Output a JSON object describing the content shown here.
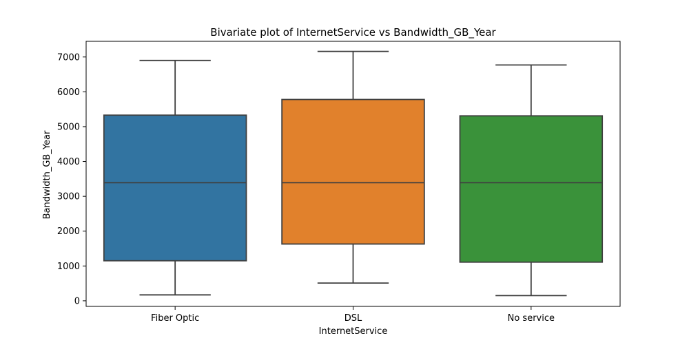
{
  "chart_data": {
    "type": "box",
    "title": "Bivariate plot of InternetService vs Bandwidth_GB_Year",
    "xlabel": "InternetService",
    "ylabel": "Bandwidth_GB_Year",
    "ylim": [
      -160,
      7450
    ],
    "yticks": [
      0,
      1000,
      2000,
      3000,
      4000,
      5000,
      6000,
      7000
    ],
    "categories": [
      "Fiber Optic",
      "DSL",
      "No service"
    ],
    "colors": [
      "#3274a1",
      "#e1812c",
      "#3a923a"
    ],
    "boxes": [
      {
        "category": "Fiber Optic",
        "min": 170,
        "q1": 1150,
        "median": 3390,
        "q3": 5330,
        "max": 6900
      },
      {
        "category": "DSL",
        "min": 510,
        "q1": 1630,
        "median": 3390,
        "q3": 5780,
        "max": 7160
      },
      {
        "category": "No service",
        "min": 150,
        "q1": 1110,
        "median": 3390,
        "q3": 5310,
        "max": 6770
      }
    ],
    "grid": false,
    "legend": "none"
  }
}
